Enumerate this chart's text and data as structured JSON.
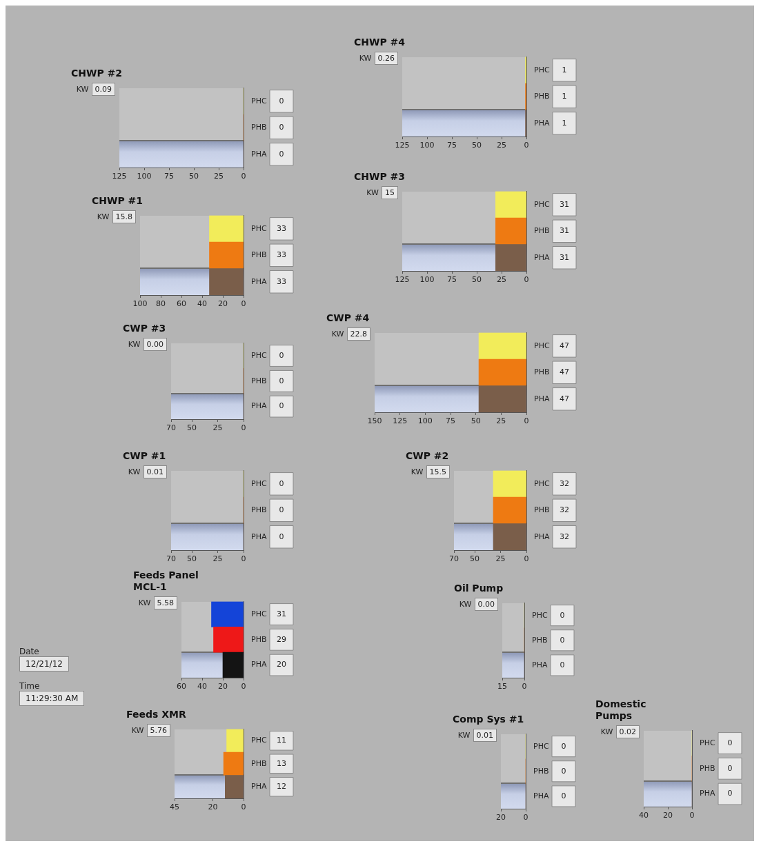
{
  "chart_data": [
    {
      "type": "other",
      "annotations": [
        "Date",
        "12/21/12",
        "Time",
        "11:29:30 AM"
      ]
    },
    {
      "type": "bar",
      "orientation": "horizontal",
      "title": "Feeds XMR",
      "categories": [
        "PHC",
        "PHB",
        "PHA"
      ],
      "values": [
        11,
        13,
        12
      ],
      "colors": [
        "#f2ec5a",
        "#ee7a12",
        "#7a5e4a"
      ],
      "xlim": [
        45,
        0
      ],
      "xticks": [
        45,
        20,
        0
      ],
      "data_labels": true,
      "annotations": [
        "KW",
        "5.76"
      ]
    },
    {
      "type": "bar",
      "orientation": "horizontal",
      "title": "Feeds Panel MCL-1",
      "categories": [
        "PHC",
        "PHB",
        "PHA"
      ],
      "values": [
        31,
        29,
        20
      ],
      "colors": [
        "#1444d8",
        "#ee1818",
        "#141414"
      ],
      "xlim": [
        60,
        0
      ],
      "xticks": [
        60,
        40,
        20,
        0
      ],
      "data_labels": true,
      "annotations": [
        "KW",
        "5.58"
      ]
    },
    {
      "type": "bar",
      "orientation": "horizontal",
      "title": "CWP #1",
      "categories": [
        "PHC",
        "PHB",
        "PHA"
      ],
      "values": [
        0,
        0,
        0
      ],
      "colors": [
        "#f2ec5a",
        "#ee7a12",
        "#7a5e4a"
      ],
      "xlim": [
        70,
        0
      ],
      "xticks": [
        70,
        50,
        25,
        0
      ],
      "data_labels": true,
      "annotations": [
        "KW",
        "0.01"
      ]
    },
    {
      "type": "bar",
      "orientation": "horizontal",
      "title": "CWP #3",
      "categories": [
        "PHC",
        "PHB",
        "PHA"
      ],
      "values": [
        0,
        0,
        0
      ],
      "colors": [
        "#f2ec5a",
        "#ee7a12",
        "#7a5e4a"
      ],
      "xlim": [
        70,
        0
      ],
      "xticks": [
        70,
        50,
        25,
        0
      ],
      "data_labels": true,
      "annotations": [
        "KW",
        "0.00"
      ]
    },
    {
      "type": "bar",
      "orientation": "horizontal",
      "title": "CHWP #1",
      "categories": [
        "PHC",
        "PHB",
        "PHA"
      ],
      "values": [
        33,
        33,
        33
      ],
      "colors": [
        "#f2ec5a",
        "#ee7a12",
        "#7a5e4a"
      ],
      "xlim": [
        100,
        0
      ],
      "xticks": [
        100,
        80,
        60,
        40,
        20,
        0
      ],
      "data_labels": true,
      "annotations": [
        "KW",
        "15.8"
      ]
    },
    {
      "type": "bar",
      "orientation": "horizontal",
      "title": "CHWP #2",
      "categories": [
        "PHC",
        "PHB",
        "PHA"
      ],
      "values": [
        0,
        0,
        0
      ],
      "colors": [
        "#f2ec5a",
        "#ee7a12",
        "#7a5e4a"
      ],
      "xlim": [
        125,
        0
      ],
      "xticks": [
        125,
        100,
        75,
        50,
        25,
        0
      ],
      "data_labels": true,
      "annotations": [
        "KW",
        "0.09"
      ]
    },
    {
      "type": "bar",
      "orientation": "horizontal",
      "title": "Comp Sys #1",
      "categories": [
        "PHC",
        "PHB",
        "PHA"
      ],
      "values": [
        0,
        0,
        0
      ],
      "colors": [
        "#f2ec5a",
        "#ee7a12",
        "#7a5e4a"
      ],
      "xlim": [
        20,
        0
      ],
      "xticks": [
        20,
        0
      ],
      "data_labels": true,
      "annotations": [
        "KW",
        "0.01"
      ]
    },
    {
      "type": "bar",
      "orientation": "horizontal",
      "title": "Oil Pump",
      "categories": [
        "PHC",
        "PHB",
        "PHA"
      ],
      "values": [
        0,
        0,
        0
      ],
      "colors": [
        "#f2ec5a",
        "#ee7a12",
        "#7a5e4a"
      ],
      "xlim": [
        15,
        0
      ],
      "xticks": [
        15,
        0
      ],
      "data_labels": true,
      "annotations": [
        "KW",
        "0.00"
      ]
    },
    {
      "type": "bar",
      "orientation": "horizontal",
      "title": "CWP #2",
      "categories": [
        "PHC",
        "PHB",
        "PHA"
      ],
      "values": [
        32,
        32,
        32
      ],
      "colors": [
        "#f2ec5a",
        "#ee7a12",
        "#7a5e4a"
      ],
      "xlim": [
        70,
        0
      ],
      "xticks": [
        70,
        50,
        25,
        0
      ],
      "data_labels": true,
      "annotations": [
        "KW",
        "15.5"
      ]
    },
    {
      "type": "bar",
      "orientation": "horizontal",
      "title": "CWP #4",
      "categories": [
        "PHC",
        "PHB",
        "PHA"
      ],
      "values": [
        47,
        47,
        47
      ],
      "colors": [
        "#f2ec5a",
        "#ee7a12",
        "#7a5e4a"
      ],
      "xlim": [
        150,
        0
      ],
      "xticks": [
        150,
        125,
        100,
        75,
        50,
        25,
        0
      ],
      "data_labels": true,
      "annotations": [
        "KW",
        "22.8"
      ]
    },
    {
      "type": "bar",
      "orientation": "horizontal",
      "title": "CHWP #3",
      "categories": [
        "PHC",
        "PHB",
        "PHA"
      ],
      "values": [
        31,
        31,
        31
      ],
      "colors": [
        "#f2ec5a",
        "#ee7a12",
        "#7a5e4a"
      ],
      "xlim": [
        125,
        0
      ],
      "xticks": [
        125,
        100,
        75,
        50,
        25,
        0
      ],
      "data_labels": true,
      "annotations": [
        "KW",
        "15"
      ]
    },
    {
      "type": "bar",
      "orientation": "horizontal",
      "title": "CHWP #4",
      "categories": [
        "PHC",
        "PHB",
        "PHA"
      ],
      "values": [
        1,
        1,
        1
      ],
      "colors": [
        "#f2ec5a",
        "#ee7a12",
        "#7a5e4a"
      ],
      "xlim": [
        125,
        0
      ],
      "xticks": [
        125,
        100,
        75,
        50,
        25,
        0
      ],
      "data_labels": true,
      "annotations": [
        "KW",
        "0.26"
      ]
    },
    {
      "type": "bar",
      "orientation": "horizontal",
      "title": "Domestic Pumps",
      "categories": [
        "PHC",
        "PHB",
        "PHA"
      ],
      "values": [
        0,
        0,
        0
      ],
      "colors": [
        "#f2ec5a",
        "#ee7a12",
        "#7a5e4a"
      ],
      "xlim": [
        40,
        0
      ],
      "xticks": [
        40,
        20,
        0
      ],
      "data_labels": true,
      "annotations": [
        "KW",
        "0.02"
      ]
    }
  ]
}
